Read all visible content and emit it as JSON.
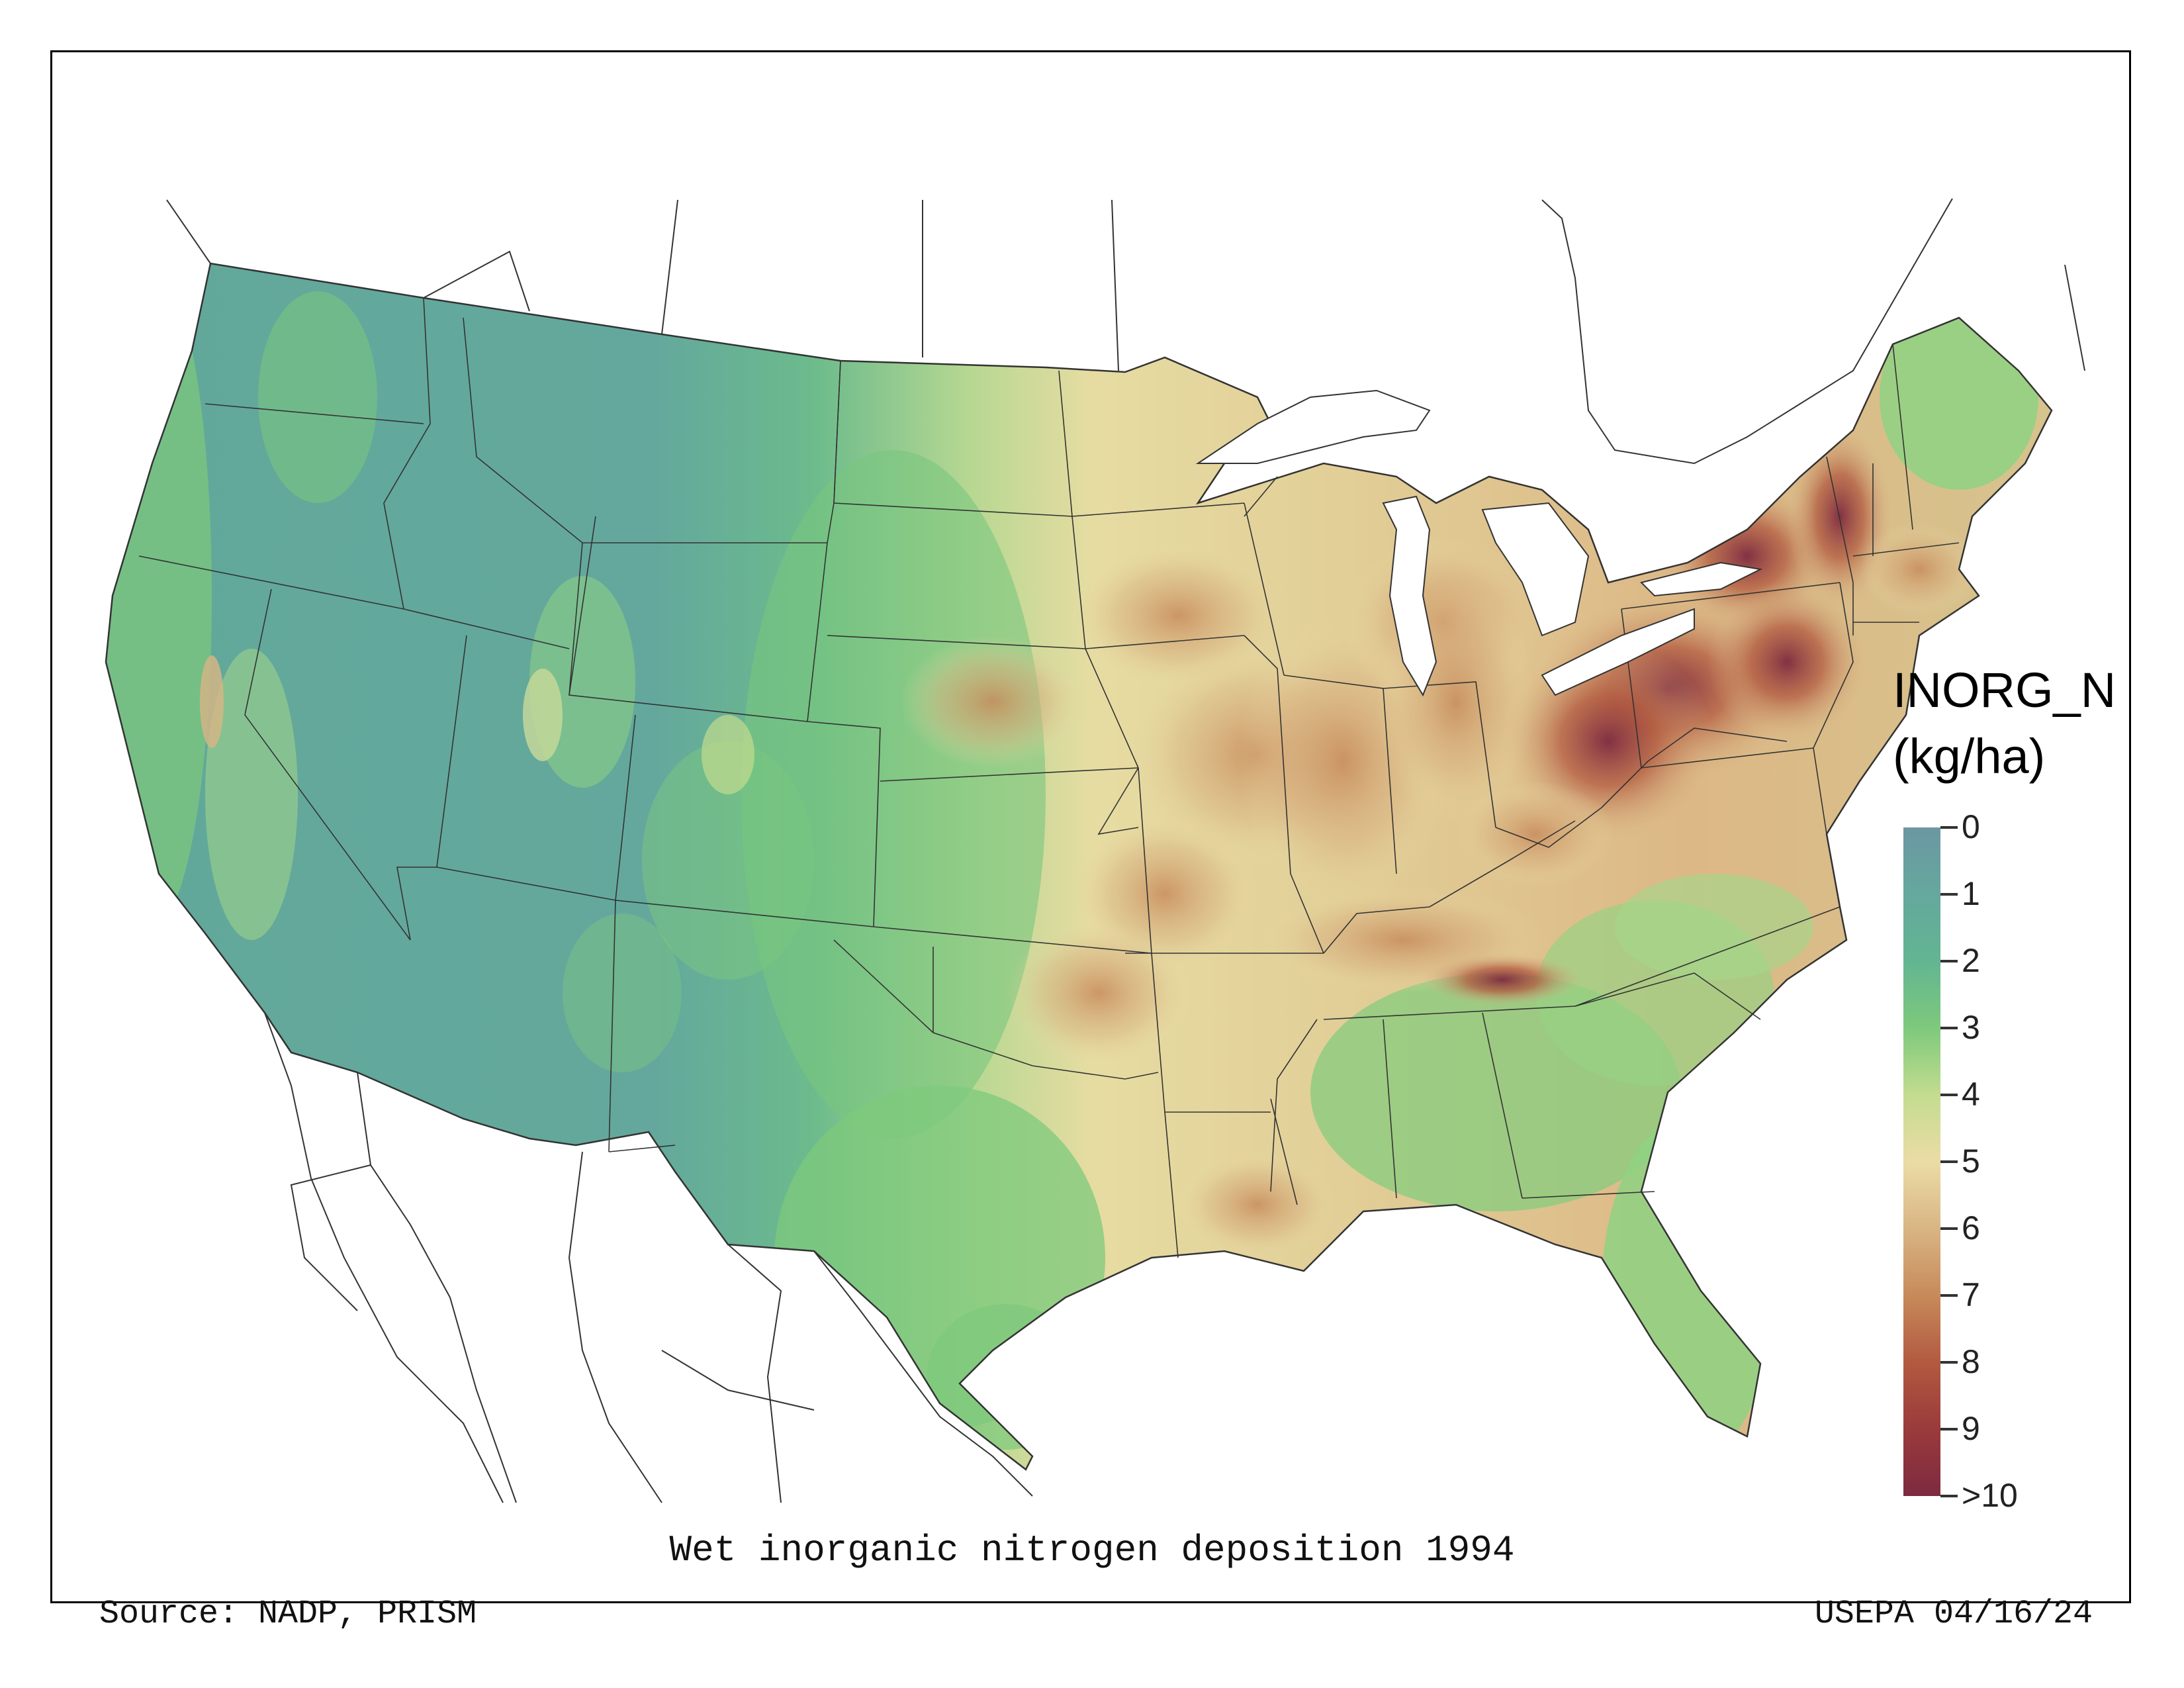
{
  "title": "Wet inorganic nitrogen deposition 1994",
  "source": "Source: NADP, PRISM",
  "credit": "USEPA 04/16/24",
  "legend": {
    "title_line1": "INORG_N",
    "title_line2": "(kg/ha)",
    "ticks": [
      "0",
      "1",
      "2",
      "3",
      "4",
      "5",
      "6",
      "7",
      "8",
      "9",
      ">10"
    ],
    "colors": [
      "#6b97a3",
      "#65a89d",
      "#62b592",
      "#7ec97c",
      "#c3dc8f",
      "#ebdca6",
      "#d9b584",
      "#c78a5a",
      "#b25a40",
      "#9a3a3c",
      "#7d2a40"
    ]
  },
  "map": {
    "region": "Contiguous United States",
    "variable": "INORG_N",
    "units": "kg/ha",
    "colors": {
      "low": "#65a89d",
      "mid": "#ebdca6",
      "high": "#9a3a3c",
      "water": "#ffffff",
      "boundary": "#333333"
    }
  }
}
